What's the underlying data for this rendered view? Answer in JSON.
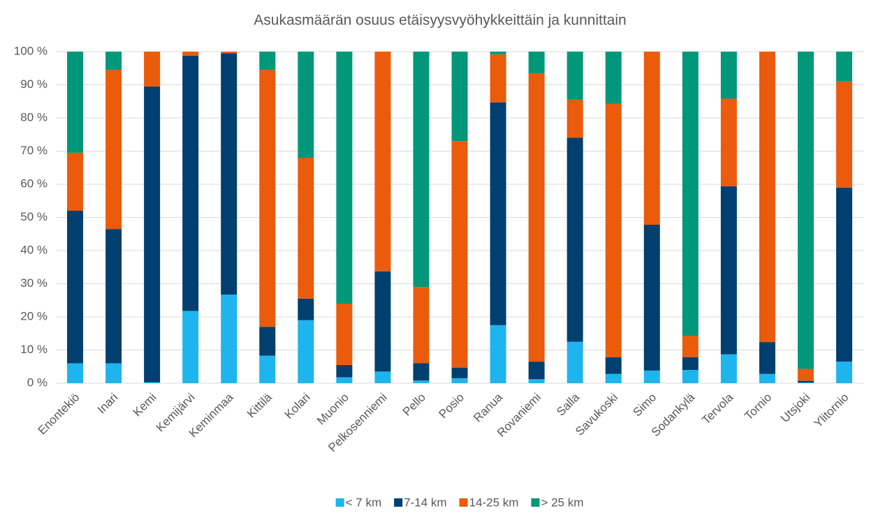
{
  "chart_data": {
    "type": "stacked_bar",
    "title": "Asukasmäärän osuus etäisyysvyöhykkeittäin ja kunnittain",
    "categories": [
      "Enontekiö",
      "Inari",
      "Kemi",
      "Kemijärvi",
      "Keminmaa",
      "Kittilä",
      "Kolari",
      "Muonio",
      "Pelkosenniemi",
      "Pello",
      "Posio",
      "Ranua",
      "Rovaniemi",
      "Salla",
      "Savukoski",
      "Simo",
      "Sodankylä",
      "Tervola",
      "Tornio",
      "Utsjoki",
      "Ylitornio"
    ],
    "series": [
      {
        "name": "< 7 km",
        "color": "#1eb4ee",
        "values": [
          6,
          6,
          0.3,
          21.8,
          26.7,
          8.3,
          19,
          1.8,
          3.5,
          0.8,
          1.5,
          17.5,
          1.2,
          12.5,
          2.8,
          3.8,
          4,
          8.7,
          2.8,
          0.2,
          6.5
        ]
      },
      {
        "name": "7-14 km",
        "color": "#003f70",
        "values": [
          46,
          40.5,
          89.2,
          77,
          72.8,
          8.7,
          6.5,
          3.7,
          30.2,
          5.2,
          3.2,
          67.2,
          5.3,
          61.5,
          5,
          44,
          3.8,
          50.7,
          9.6,
          0.5,
          52.5
        ]
      },
      {
        "name": "14-25 km",
        "color": "#ea5b0c",
        "values": [
          17.5,
          48,
          10.5,
          1.2,
          0.5,
          77.5,
          42.5,
          18.5,
          66.3,
          23,
          68.3,
          14.5,
          87,
          11.5,
          76.5,
          52.2,
          6.5,
          26.4,
          87.6,
          3.6,
          32
        ]
      },
      {
        "name": "> 25 km",
        "color": "#00977a",
        "values": [
          30.5,
          5.5,
          0,
          0,
          0,
          5.5,
          32,
          76,
          0,
          71,
          27,
          0.8,
          6.5,
          14.5,
          15.7,
          0,
          85.7,
          14.2,
          0,
          95.7,
          9
        ]
      }
    ],
    "ylim": [
      0,
      100
    ],
    "yticks": [
      {
        "value": 0,
        "label": "0 %"
      },
      {
        "value": 10,
        "label": "10 %"
      },
      {
        "value": 20,
        "label": "20 %"
      },
      {
        "value": 30,
        "label": "30 %"
      },
      {
        "value": 40,
        "label": "40 %"
      },
      {
        "value": 50,
        "label": "50 %"
      },
      {
        "value": 60,
        "label": "60 %"
      },
      {
        "value": 70,
        "label": "70 %"
      },
      {
        "value": 80,
        "label": "80 %"
      },
      {
        "value": 90,
        "label": "90 %"
      },
      {
        "value": 100,
        "label": "100 %"
      }
    ],
    "grid": true,
    "legend": "bottom"
  }
}
